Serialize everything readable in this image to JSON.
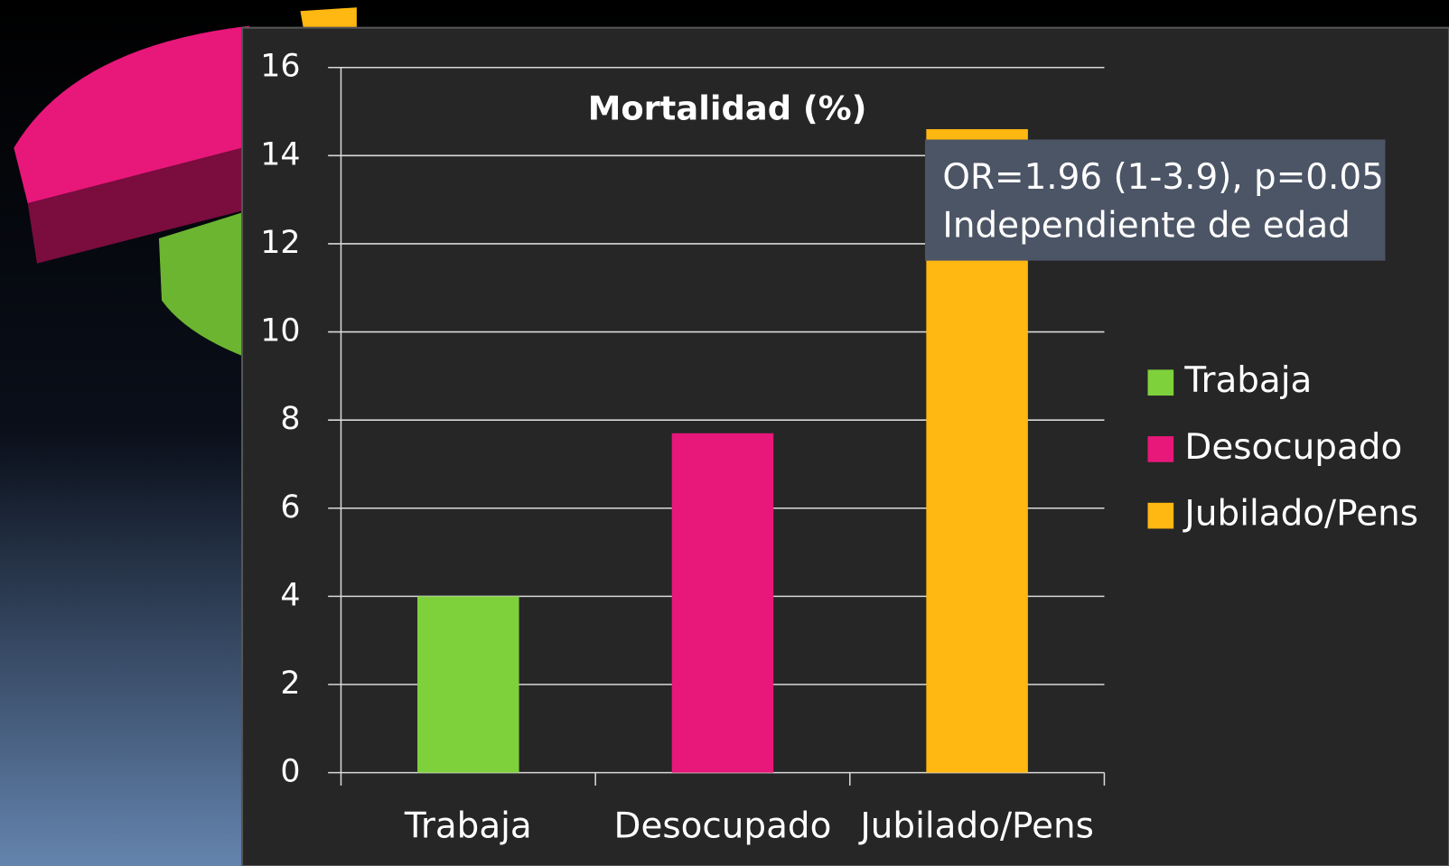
{
  "chart_data": {
    "type": "bar",
    "title": "Mortalidad (%)",
    "categories": [
      "Trabaja",
      "Desocupado",
      "Jubilado/Pens"
    ],
    "values": [
      4.0,
      7.7,
      14.6
    ],
    "colors": [
      "#7ed13b",
      "#e8177a",
      "#ffb711"
    ],
    "ylim": [
      0,
      16
    ],
    "yticks": [
      0,
      2,
      4,
      6,
      8,
      10,
      12,
      14,
      16
    ],
    "grid": true,
    "legend": "right",
    "annotation": [
      "OR=1.96 (1-3.9), p=0.05",
      "Independiente de edad"
    ]
  }
}
